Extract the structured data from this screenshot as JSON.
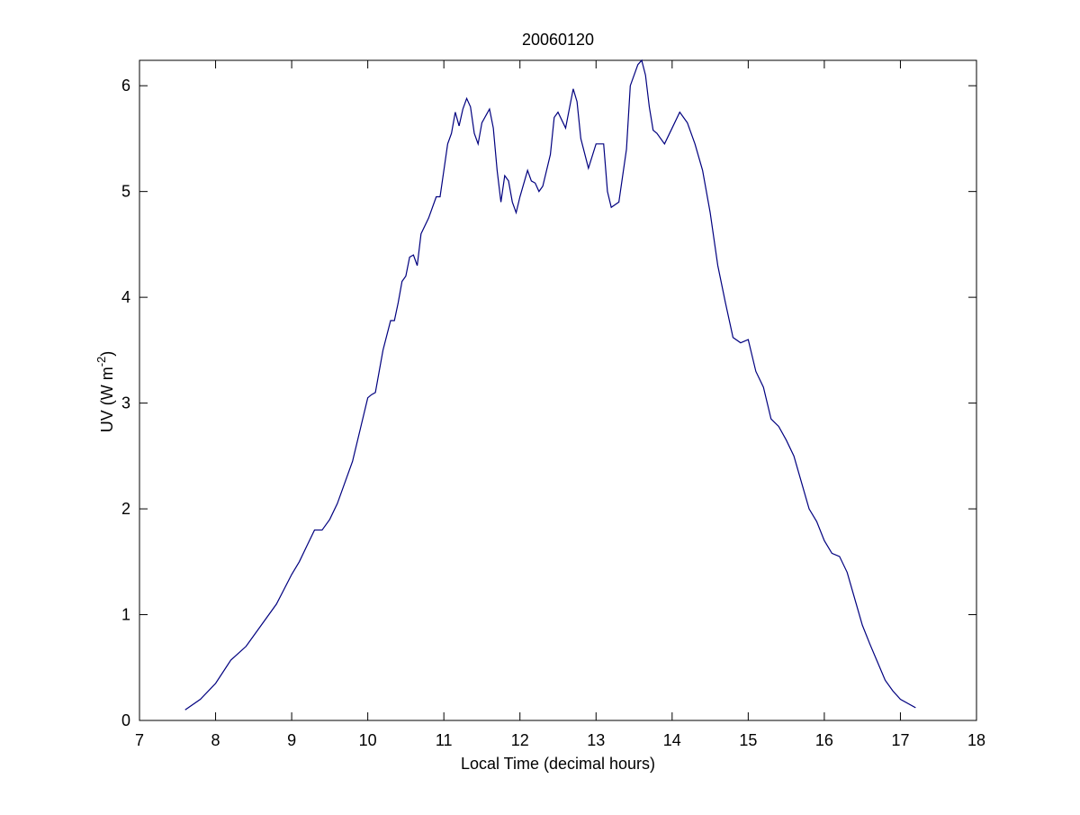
{
  "chart_data": {
    "type": "line",
    "title": "20060120",
    "xlabel": "Local Time (decimal hours)",
    "ylabel": {
      "text": "UV (W m",
      "superscript": "-2",
      "suffix": ")"
    },
    "x": [
      7.6,
      7.8,
      8.0,
      8.2,
      8.4,
      8.6,
      8.8,
      9.0,
      9.1,
      9.2,
      9.3,
      9.4,
      9.5,
      9.6,
      9.7,
      9.8,
      9.9,
      10.0,
      10.05,
      10.1,
      10.2,
      10.3,
      10.35,
      10.4,
      10.45,
      10.5,
      10.55,
      10.6,
      10.65,
      10.7,
      10.8,
      10.9,
      10.95,
      11.0,
      11.05,
      11.1,
      11.15,
      11.2,
      11.25,
      11.3,
      11.35,
      11.4,
      11.45,
      11.5,
      11.6,
      11.65,
      11.7,
      11.75,
      11.8,
      11.85,
      11.9,
      11.95,
      12.0,
      12.1,
      12.15,
      12.2,
      12.25,
      12.3,
      12.4,
      12.45,
      12.5,
      12.6,
      12.7,
      12.75,
      12.8,
      12.9,
      13.0,
      13.1,
      13.15,
      13.2,
      13.3,
      13.4,
      13.45,
      13.55,
      13.6,
      13.65,
      13.7,
      13.75,
      13.8,
      13.9,
      14.0,
      14.1,
      14.2,
      14.3,
      14.4,
      14.5,
      14.6,
      14.7,
      14.8,
      14.9,
      15.0,
      15.1,
      15.2,
      15.3,
      15.4,
      15.5,
      15.6,
      15.7,
      15.8,
      15.9,
      16.0,
      16.1,
      16.2,
      16.3,
      16.4,
      16.5,
      16.6,
      16.7,
      16.8,
      16.9,
      17.0,
      17.2
    ],
    "series": [
      {
        "color": "#00007f",
        "values": [
          0.1,
          0.2,
          0.35,
          0.57,
          0.7,
          0.9,
          1.1,
          1.38,
          1.5,
          1.65,
          1.8,
          1.8,
          1.9,
          2.05,
          2.25,
          2.45,
          2.75,
          3.05,
          3.08,
          3.1,
          3.5,
          3.78,
          3.78,
          3.95,
          4.15,
          4.2,
          4.38,
          4.4,
          4.3,
          4.6,
          4.75,
          4.95,
          4.95,
          5.2,
          5.45,
          5.55,
          5.75,
          5.62,
          5.78,
          5.88,
          5.8,
          5.55,
          5.45,
          5.65,
          5.78,
          5.6,
          5.2,
          4.9,
          5.15,
          5.1,
          4.9,
          4.8,
          4.95,
          5.2,
          5.1,
          5.08,
          5.0,
          5.05,
          5.35,
          5.7,
          5.75,
          5.6,
          5.97,
          5.85,
          5.5,
          5.22,
          5.45,
          5.45,
          5.0,
          4.85,
          4.9,
          5.4,
          6.0,
          6.2,
          6.24,
          6.1,
          5.8,
          5.58,
          5.55,
          5.45,
          5.6,
          5.75,
          5.65,
          5.45,
          5.2,
          4.8,
          4.3,
          3.95,
          3.62,
          3.57,
          3.6,
          3.3,
          3.15,
          2.85,
          2.78,
          2.65,
          2.5,
          2.25,
          2.0,
          1.88,
          1.7,
          1.58,
          1.55,
          1.4,
          1.15,
          0.9,
          0.72,
          0.55,
          0.38,
          0.28,
          0.2,
          0.12
        ]
      }
    ],
    "xlim": [
      7,
      18
    ],
    "xticks": [
      7,
      8,
      9,
      10,
      11,
      12,
      13,
      14,
      15,
      16,
      17,
      18
    ],
    "ylim": [
      0,
      6.24
    ],
    "yticks": [
      0,
      1,
      2,
      3,
      4,
      5,
      6
    ],
    "grid": false
  }
}
